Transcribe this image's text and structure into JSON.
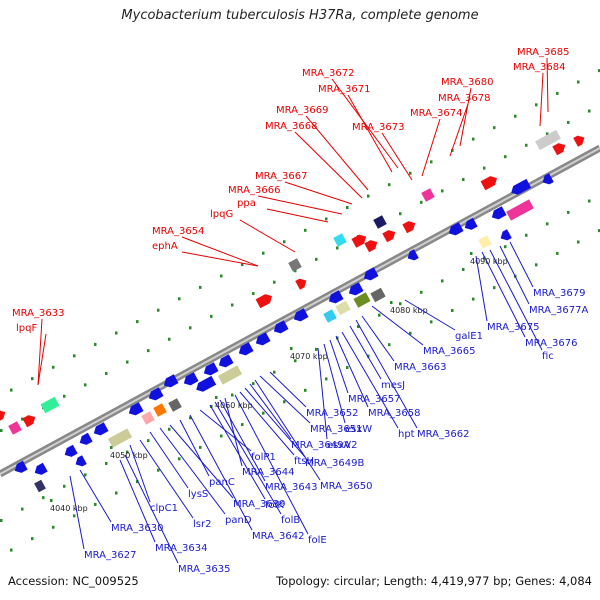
{
  "title": "Mycobacterium tuberculosis H37Ra, complete genome",
  "footer": {
    "accession": "Accession: NC_009525",
    "topology": "Topology: circular; Length: 4,419,977 bp; Genes: 4,084"
  },
  "colors": {
    "red_label": "#e60000",
    "blue_label": "#1a1acc",
    "strand": "#9a9a9a",
    "forward": "#ee1111",
    "reverse": "#1111dd"
  },
  "ticks": [
    "4040 kbp",
    "4050 kbp",
    "4060 kbp",
    "4070 kbp",
    "4080 kbp",
    "4090 kbp"
  ],
  "top_labels": [
    "MRA_3633",
    "lpqF",
    "MRA_3654",
    "ephA",
    "lpqG",
    "ppa",
    "MRA_3666",
    "MRA_3667",
    "MRA_3668",
    "MRA_3669",
    "MRA_3671",
    "MRA_3672",
    "MRA_3673",
    "MRA_3674",
    "MRA_3678",
    "MRA_3680",
    "MRA_3684",
    "MRA_3685"
  ],
  "bottom_labels": [
    "MRA_3627",
    "MRA_3630",
    "MRA_3634",
    "MRA_3635",
    "clpC1",
    "lsr2",
    "lysS",
    "panD",
    "MRA_3639",
    "panC",
    "MRA_3642",
    "folP1",
    "folK",
    "folB",
    "MRA_3643",
    "MRA_3644",
    "folE",
    "ftsH",
    "MRA_3649B",
    "MRA_3649A",
    "MRA_3650",
    "MRA_3651",
    "MRA_3652",
    "esxV2",
    "esxW",
    "MRA_3657",
    "MRA_3658",
    "hpt",
    "mesJ",
    "MRA_3662",
    "MRA_3663",
    "MRA_3665",
    "galE1",
    "MRA_3675",
    "MRA_3676",
    "fic",
    "MRA_3677A",
    "MRA_3679"
  ]
}
